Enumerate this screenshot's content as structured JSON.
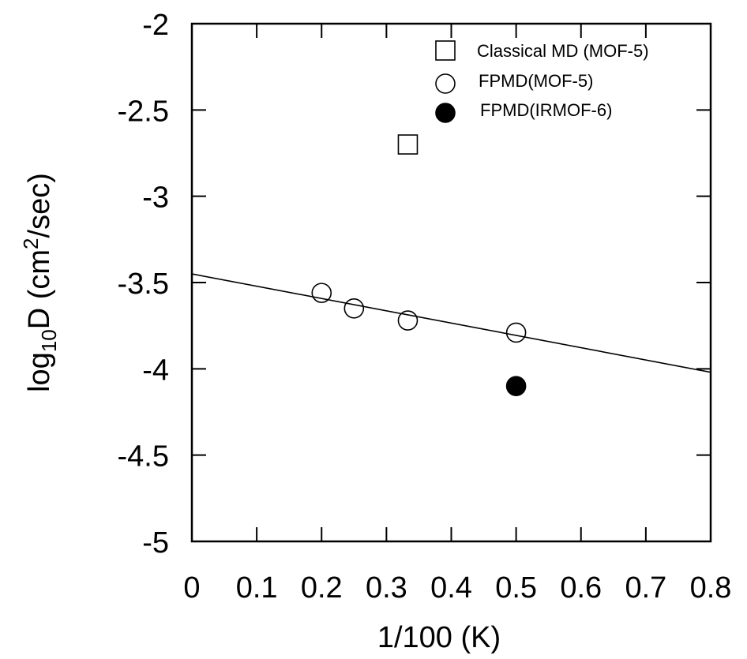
{
  "chart_data": {
    "type": "scatter",
    "xlabel": "1/100 (K)",
    "ylabel": {
      "prefix": "log",
      "sub": "10",
      "mid": "D (cm",
      "sup": "2",
      "suffix": "/sec)"
    },
    "xlim": [
      0,
      0.8
    ],
    "ylim": [
      -5,
      -2
    ],
    "x_ticks": [
      {
        "value": 0,
        "label": "0"
      },
      {
        "value": 0.1,
        "label": "0.1"
      },
      {
        "value": 0.2,
        "label": "0.2"
      },
      {
        "value": 0.3,
        "label": "0.3"
      },
      {
        "value": 0.4,
        "label": "0.4"
      },
      {
        "value": 0.5,
        "label": "0.5"
      },
      {
        "value": 0.6,
        "label": "0.6"
      },
      {
        "value": 0.7,
        "label": "0.7"
      },
      {
        "value": 0.8,
        "label": "0.8"
      }
    ],
    "y_ticks": [
      {
        "value": -2,
        "label": "-2"
      },
      {
        "value": -2.5,
        "label": "-2.5"
      },
      {
        "value": -3,
        "label": "-3"
      },
      {
        "value": -3.5,
        "label": "-3.5"
      },
      {
        "value": -4,
        "label": "-4"
      },
      {
        "value": -4.5,
        "label": "-4.5"
      },
      {
        "value": -5,
        "label": "-5"
      }
    ],
    "grid": false,
    "legend_position": "top-right",
    "series": [
      {
        "name": "Classical MD (MOF-5)",
        "marker": "open-square",
        "points": [
          [
            0.333,
            -2.7
          ]
        ]
      },
      {
        "name": "FPMD(MOF-5)",
        "marker": "open-circle",
        "points": [
          [
            0.2,
            -3.56
          ],
          [
            0.25,
            -3.65
          ],
          [
            0.333,
            -3.72
          ],
          [
            0.5,
            -3.79
          ]
        ]
      },
      {
        "name": "FPMD(IRMOF-6)",
        "marker": "filled-circle",
        "points": [
          [
            0.5,
            -4.1
          ]
        ]
      }
    ],
    "fit_line": {
      "points": [
        [
          0,
          -3.45
        ],
        [
          0.8,
          -4.02
        ]
      ]
    }
  }
}
